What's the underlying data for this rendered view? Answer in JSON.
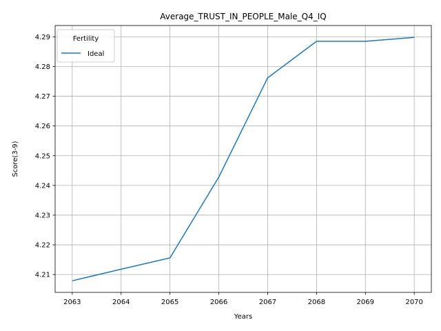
{
  "chart_data": {
    "type": "line",
    "title": "Average_TRUST_IN_PEOPLE_Male_Q4_IQ",
    "xlabel": "Years",
    "ylabel": "Score(3-9)",
    "x": [
      2063,
      2064,
      2065,
      2066,
      2067,
      2068,
      2069,
      2070
    ],
    "x_tick_labels": [
      "2063",
      "2064",
      "2065",
      "2066",
      "2067",
      "2068",
      "2069",
      "2070"
    ],
    "y_ticks": [
      4.21,
      4.22,
      4.23,
      4.24,
      4.25,
      4.26,
      4.27,
      4.28,
      4.29
    ],
    "y_tick_labels": [
      "4.21",
      "4.22",
      "4.23",
      "4.24",
      "4.25",
      "4.26",
      "4.27",
      "4.28",
      "4.29"
    ],
    "xlim": [
      2062.65,
      2070.35
    ],
    "ylim": [
      4.204,
      4.2938
    ],
    "grid": true,
    "legend": {
      "title": "Fertility",
      "placement": "top-left"
    },
    "series": [
      {
        "name": "Ideal",
        "color": "#1f77b4",
        "values": [
          4.2079,
          4.2118,
          4.2156,
          4.2428,
          4.2762,
          4.2885,
          4.2885,
          4.2898
        ]
      }
    ]
  }
}
